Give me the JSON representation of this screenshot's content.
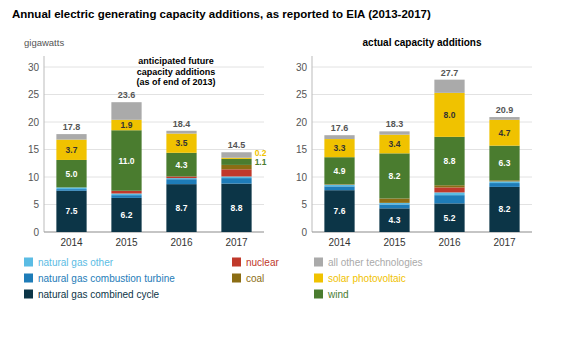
{
  "chart_data": [
    {
      "type": "bar",
      "stacked": true,
      "grid": true,
      "legend": "bottom",
      "title": "Annual electric generating capacity additions, as reported to EIA (2013-2017)",
      "ylabel": "gigawatts",
      "subtitle": "anticipated future\ncapacity additions\n(as of end of 2013)",
      "categories": [
        "2014",
        "2015",
        "2016",
        "2017"
      ],
      "series": [
        {
          "name": "natural gas combined cycle",
          "color": "#0c3547",
          "values": [
            7.5,
            6.2,
            8.7,
            8.8
          ],
          "data_labels": true,
          "value_labels": [
            "7.5",
            "6.2",
            "8.7",
            "8.8"
          ]
        },
        {
          "name": "natural gas combustion turbine",
          "color": "#1e7cb8",
          "values": [
            0.3,
            0.5,
            0.9,
            1.0
          ]
        },
        {
          "name": "natural gas other",
          "color": "#5bbce4",
          "values": [
            0.3,
            0.3,
            0.2,
            0.3
          ]
        },
        {
          "name": "nuclear",
          "color": "#c0392b",
          "values": [
            0.0,
            0.5,
            0.3,
            1.3
          ]
        },
        {
          "name": "coal",
          "color": "#8b6d14",
          "values": [
            0.0,
            0.0,
            0.0,
            0.8
          ]
        },
        {
          "name": "wind",
          "color": "#4a7c2f",
          "values": [
            5.0,
            11.0,
            4.3,
            1.1
          ],
          "data_labels": true,
          "value_labels": [
            "5.0",
            "11.0",
            "4.3",
            "1.1"
          ]
        },
        {
          "name": "solar photovoltaic",
          "color": "#f0c200",
          "values": [
            3.7,
            1.9,
            3.5,
            0.2
          ],
          "data_labels": true,
          "value_labels": [
            "3.7",
            "1.9",
            "3.5",
            "0.2"
          ]
        },
        {
          "name": "all other technologies",
          "color": "#aaaaaa",
          "values": [
            1.0,
            3.2,
            0.5,
            1.0
          ]
        }
      ],
      "totals": [
        17.8,
        23.6,
        18.4,
        14.5
      ],
      "ylim": [
        0,
        32
      ],
      "yticks": [
        0,
        5,
        10,
        15,
        20,
        25,
        30
      ]
    },
    {
      "type": "bar",
      "stacked": true,
      "grid": true,
      "subtitle": "actual capacity additions",
      "categories": [
        "2014",
        "2015",
        "2016",
        "2017"
      ],
      "series": [
        {
          "color": "#0c3547",
          "values": [
            7.6,
            4.3,
            5.2,
            8.2
          ],
          "data_labels": true,
          "value_labels": [
            "7.6",
            "4.3",
            "5.2",
            "8.2"
          ]
        },
        {
          "color": "#1e7cb8",
          "values": [
            0.7,
            0.7,
            1.5,
            0.7
          ]
        },
        {
          "color": "#5bbce4",
          "values": [
            0.3,
            0.3,
            0.5,
            0.3
          ]
        },
        {
          "color": "#c0392b",
          "values": [
            0.0,
            0.0,
            0.9,
            0.0
          ]
        },
        {
          "color": "#8b6d14",
          "values": [
            0.1,
            0.8,
            0.4,
            0.2
          ]
        },
        {
          "color": "#4a7c2f",
          "values": [
            4.9,
            8.2,
            8.8,
            6.3
          ],
          "data_labels": true,
          "value_labels": [
            "4.9",
            "8.2",
            "8.8",
            "6.3"
          ]
        },
        {
          "color": "#f0c200",
          "values": [
            3.3,
            3.4,
            8.0,
            4.7
          ],
          "data_labels": true,
          "value_labels": [
            "3.3",
            "3.4",
            "8.0",
            "4.7"
          ]
        },
        {
          "color": "#aaaaaa",
          "values": [
            0.7,
            0.6,
            2.4,
            0.5
          ]
        }
      ],
      "totals": [
        17.6,
        18.3,
        27.7,
        20.9
      ],
      "ylim": [
        0,
        32
      ],
      "yticks": [
        0,
        5,
        10,
        15,
        20,
        25,
        30
      ]
    }
  ]
}
